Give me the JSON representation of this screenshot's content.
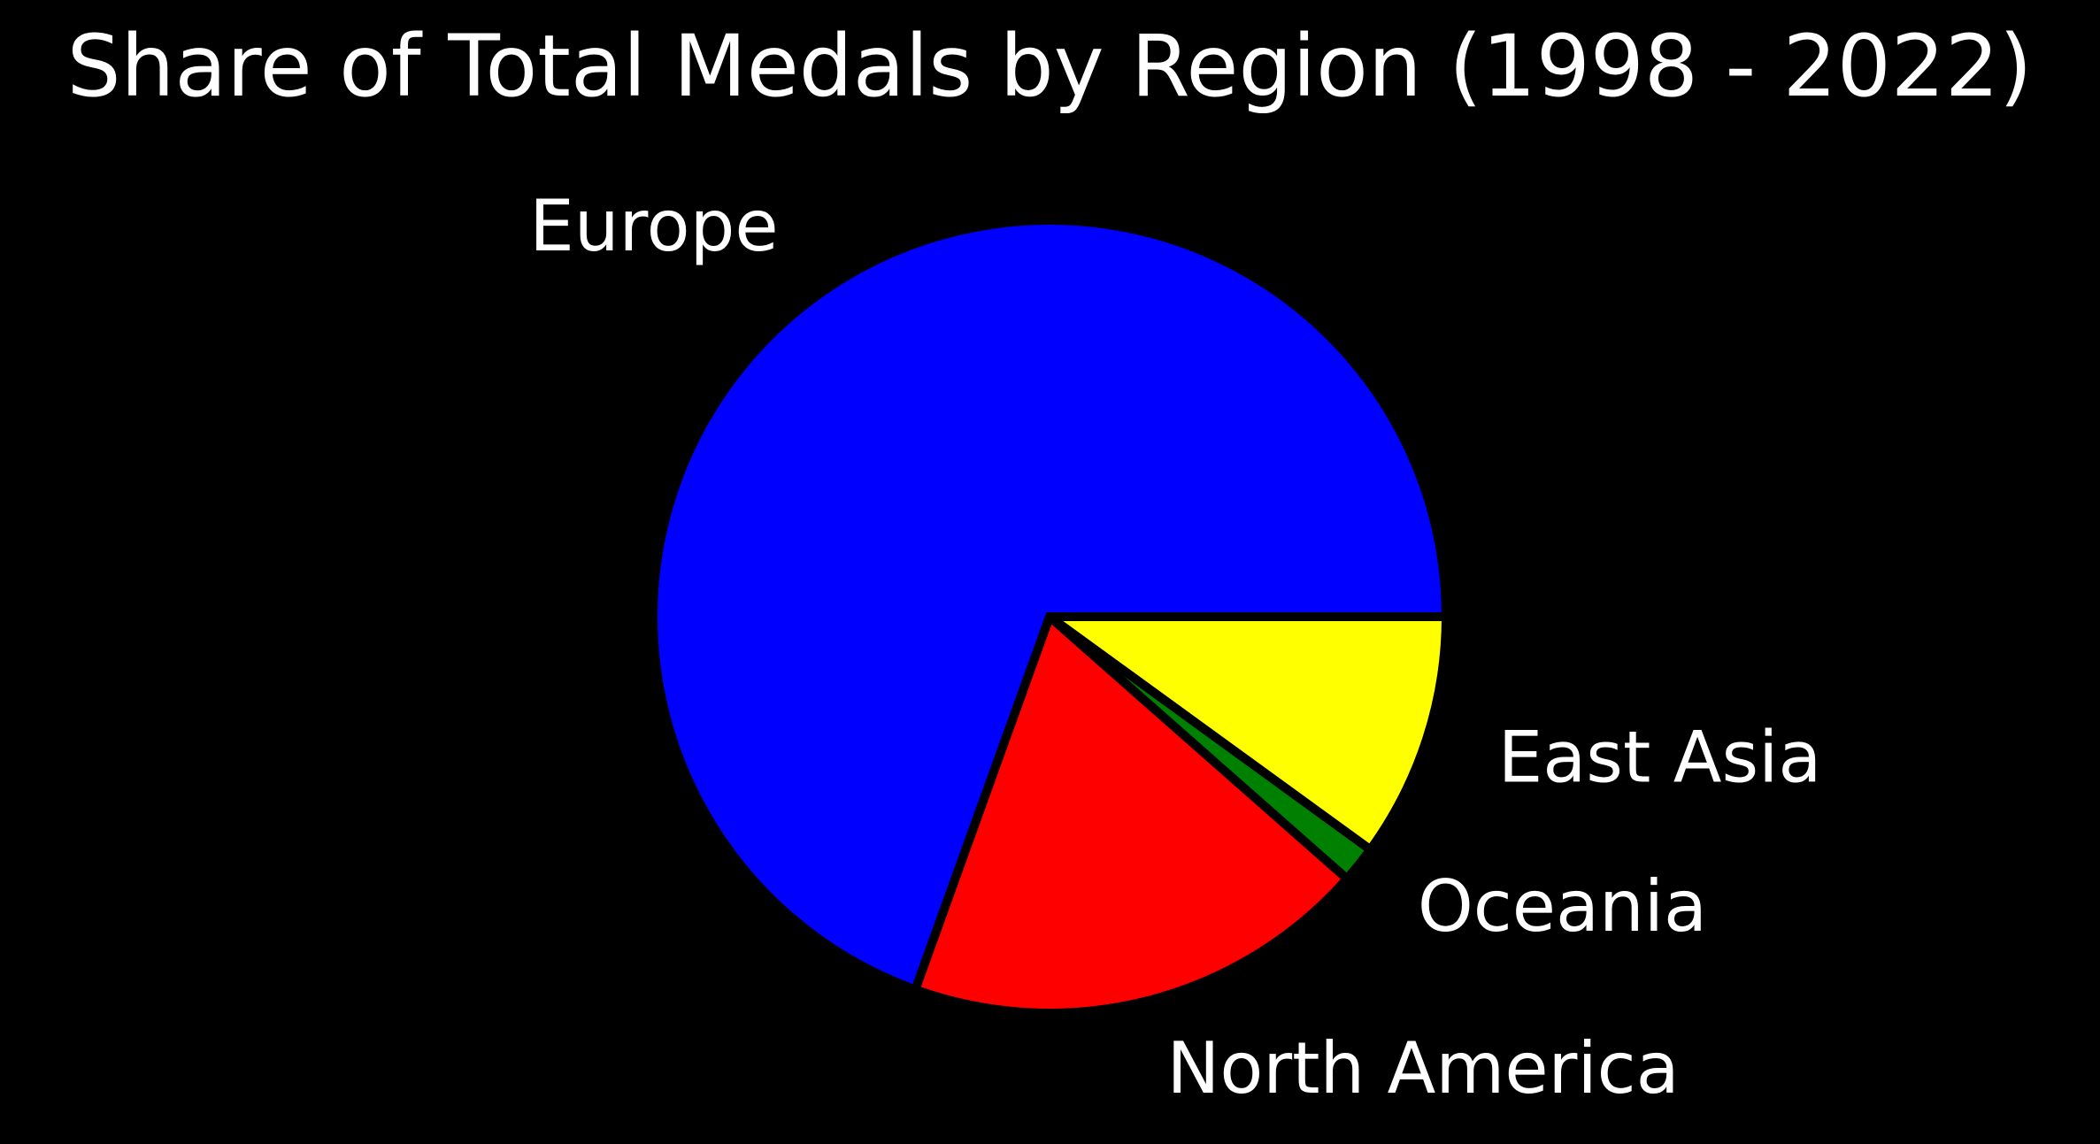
{
  "chart_data": {
    "type": "pie",
    "title": "Share of Total Medals by Region (1998 - 2022)",
    "categories": [
      "East Asia",
      "Oceania",
      "North America",
      "Europe"
    ],
    "values": [
      10.0,
      1.5,
      19.0,
      69.5
    ],
    "colors": [
      "#ffff00",
      "#008000",
      "#ff0000",
      "#0000ff"
    ],
    "start_angle_deg": 0,
    "direction": "clockwise",
    "edge_color": "#000000",
    "legend": "none"
  },
  "background_color": "#000000"
}
